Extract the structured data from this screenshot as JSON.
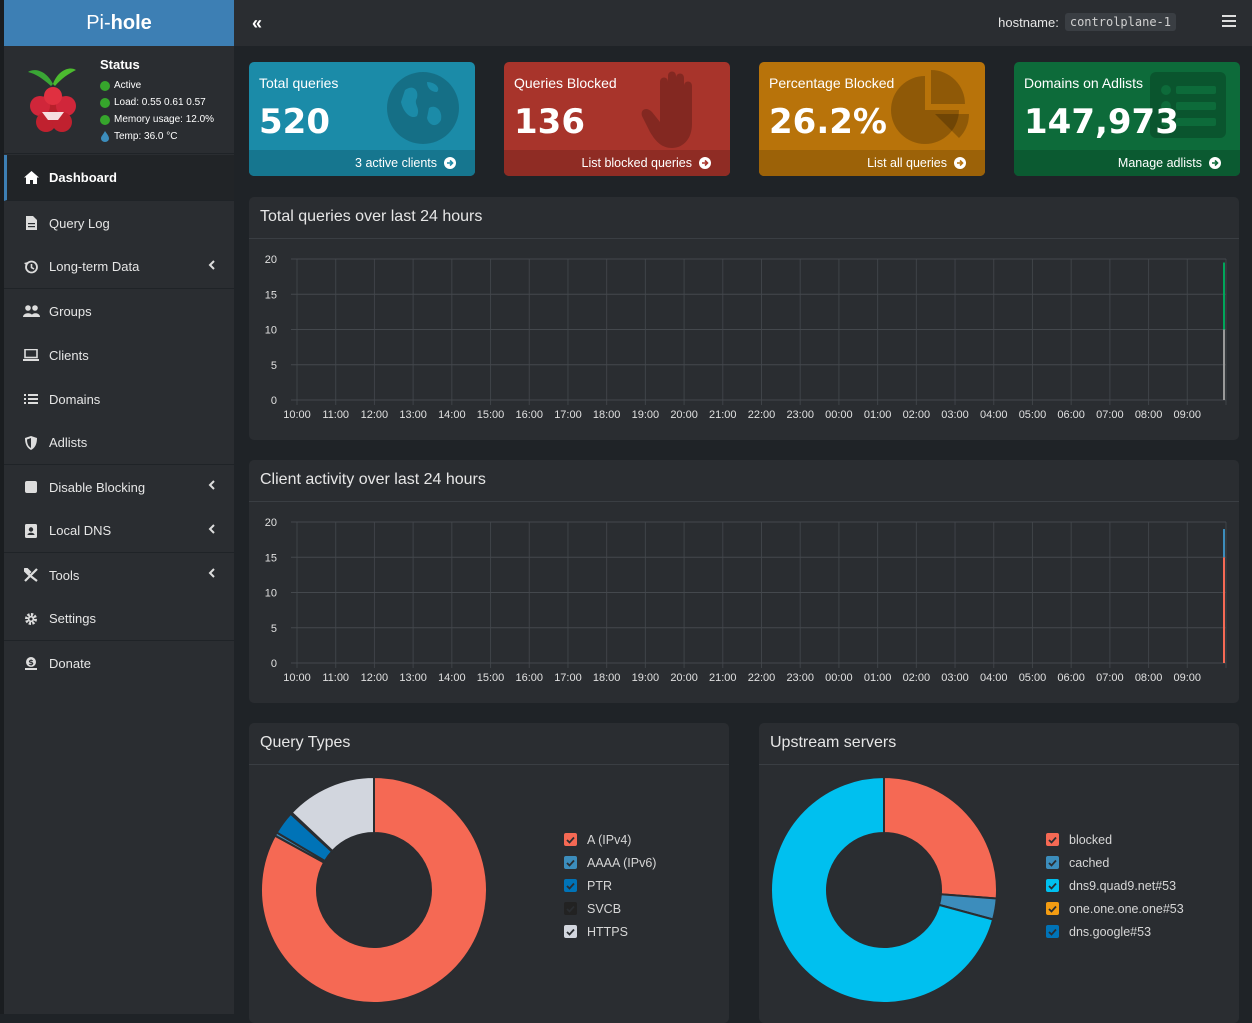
{
  "brand": {
    "pre": "Pi-",
    "bold": "hole"
  },
  "status": {
    "title": "Status",
    "active": "Active",
    "load": "Load:  0.55  0.61  0.57",
    "memory": "Memory usage:  12.0%",
    "temp": "Temp: 36.0 °C"
  },
  "nav": [
    {
      "label": "Dashboard",
      "icon": "home-icon",
      "active": true
    },
    {
      "label": "Query Log",
      "icon": "file-icon"
    },
    {
      "label": "Long-term Data",
      "icon": "history-icon",
      "submenu": true
    },
    {
      "label": "Groups",
      "icon": "users-icon"
    },
    {
      "label": "Clients",
      "icon": "laptop-icon"
    },
    {
      "label": "Domains",
      "icon": "list-icon"
    },
    {
      "label": "Adlists",
      "icon": "shield-icon"
    },
    {
      "label": "Disable Blocking",
      "icon": "stop-icon",
      "submenu": true
    },
    {
      "label": "Local DNS",
      "icon": "address-book-icon",
      "submenu": true
    },
    {
      "label": "Tools",
      "icon": "tools-icon",
      "submenu": true
    },
    {
      "label": "Settings",
      "icon": "gear-icon"
    },
    {
      "label": "Donate",
      "icon": "donate-icon"
    }
  ],
  "topbar": {
    "collapse": "«",
    "hostname_label": "hostname:",
    "hostname": "controlplane-1"
  },
  "cards": [
    {
      "title": "Total queries",
      "value": "520",
      "footer": "3 active clients",
      "color": "#1b8ba8",
      "footer_color": "#16768f",
      "icon": "globe-icon"
    },
    {
      "title": "Queries Blocked",
      "value": "136",
      "footer": "List blocked queries",
      "color": "#a8342b",
      "footer_color": "#8f2c24",
      "icon": "hand-icon"
    },
    {
      "title": "Percentage Blocked",
      "value": "26.2%",
      "footer": "List all queries",
      "color": "#b8730a",
      "footer_color": "#9c6208",
      "icon": "pie-chart-icon"
    },
    {
      "title": "Domains on Adlists",
      "value": "147,973",
      "footer": "Manage adlists",
      "color": "#0d6b3a",
      "footer_color": "#0b5a31",
      "icon": "list-alt-icon"
    }
  ],
  "panels": {
    "queries_title": "Total queries over last 24 hours",
    "clients_title": "Client activity over last 24 hours",
    "types_title": "Query Types",
    "upstream_title": "Upstream servers"
  },
  "chart_data": [
    {
      "type": "bar",
      "title": "Total queries over last 24 hours",
      "categories": [
        "10:00",
        "11:00",
        "12:00",
        "13:00",
        "14:00",
        "15:00",
        "16:00",
        "17:00",
        "18:00",
        "19:00",
        "20:00",
        "21:00",
        "22:00",
        "23:00",
        "00:00",
        "01:00",
        "02:00",
        "03:00",
        "04:00",
        "05:00",
        "06:00",
        "07:00",
        "08:00",
        "09:00"
      ],
      "yticks": [
        0,
        5,
        10,
        15,
        20
      ],
      "ylim": [
        0,
        20
      ],
      "stacked": true,
      "series": [
        {
          "color": "#999999",
          "values": [
            0,
            0,
            0,
            0,
            0,
            0,
            0,
            0,
            0,
            0,
            0,
            0,
            0,
            0,
            0,
            0,
            0,
            0,
            0,
            0,
            0,
            0,
            0,
            10
          ]
        },
        {
          "color": "#00a65a",
          "values": [
            0,
            0,
            0,
            0,
            0,
            0,
            0,
            0,
            0,
            0,
            0,
            0,
            0,
            0,
            0,
            0,
            0,
            0,
            0,
            0,
            0,
            0,
            0,
            9.5
          ]
        }
      ],
      "grid": true
    },
    {
      "type": "bar",
      "title": "Client activity over last 24 hours",
      "categories": [
        "10:00",
        "11:00",
        "12:00",
        "13:00",
        "14:00",
        "15:00",
        "16:00",
        "17:00",
        "18:00",
        "19:00",
        "20:00",
        "21:00",
        "22:00",
        "23:00",
        "00:00",
        "01:00",
        "02:00",
        "03:00",
        "04:00",
        "05:00",
        "06:00",
        "07:00",
        "08:00",
        "09:00"
      ],
      "yticks": [
        0,
        5,
        10,
        15,
        20
      ],
      "ylim": [
        0,
        20
      ],
      "stacked": true,
      "series": [
        {
          "color": "#f56954",
          "values": [
            0,
            0,
            0,
            0,
            0,
            0,
            0,
            0,
            0,
            0,
            0,
            0,
            0,
            0,
            0,
            0,
            0,
            0,
            0,
            0,
            0,
            0,
            0,
            15
          ]
        },
        {
          "color": "#3c8dbc",
          "values": [
            0,
            0,
            0,
            0,
            0,
            0,
            0,
            0,
            0,
            0,
            0,
            0,
            0,
            0,
            0,
            0,
            0,
            0,
            0,
            0,
            0,
            0,
            0,
            4
          ]
        }
      ],
      "grid": true
    },
    {
      "type": "pie",
      "title": "Query Types",
      "labels": [
        "A (IPv4)",
        "AAAA (IPv6)",
        "PTR",
        "SVCB",
        "HTTPS"
      ],
      "values": [
        83,
        0.5,
        3.3,
        0.2,
        13
      ],
      "colors": [
        "#f56954",
        "#3c8dbc",
        "#0073b7",
        "#222222",
        "#d2d6de"
      ],
      "legend_checks": [
        "#f56954",
        "#3c8dbc",
        "#0073b7",
        "#222222",
        "#d2d6de"
      ]
    },
    {
      "type": "pie",
      "title": "Upstream servers",
      "labels": [
        "blocked",
        "cached",
        "dns9.quad9.net#53",
        "one.one.one.one#53",
        "dns.google#53"
      ],
      "values": [
        26.2,
        3,
        70.8,
        0,
        0
      ],
      "colors": [
        "#f56954",
        "#3c8dbc",
        "#00c0ef",
        "#f39c12",
        "#0073b7"
      ],
      "legend_checks": [
        "#f56954",
        "#3c8dbc",
        "#00c0ef",
        "#f39c12",
        "#0073b7"
      ]
    }
  ]
}
